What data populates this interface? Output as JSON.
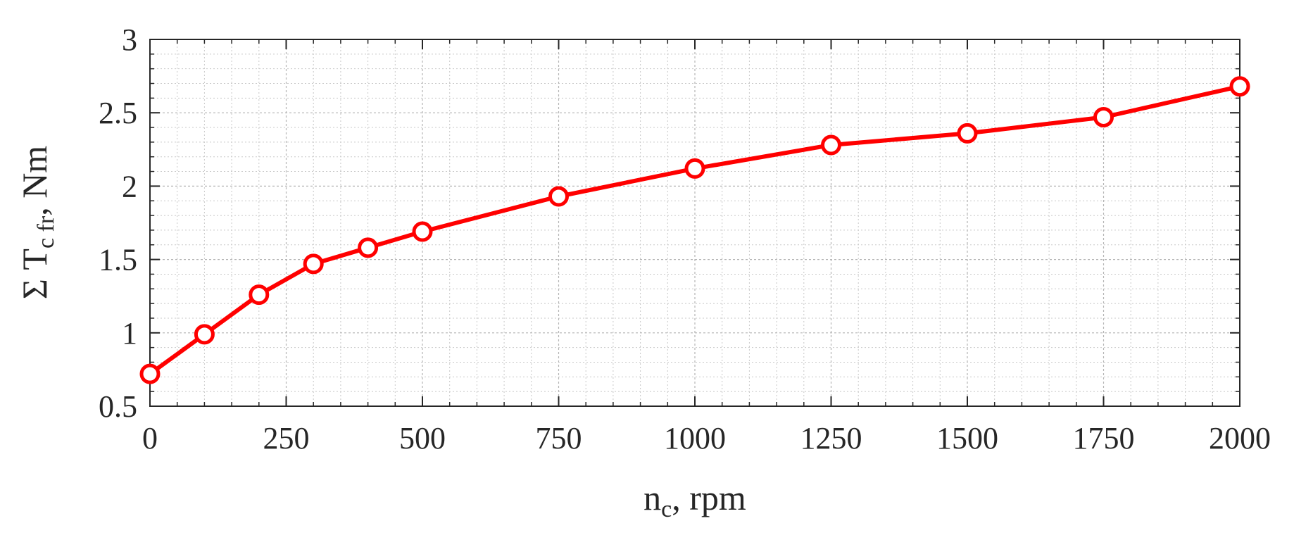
{
  "chart_data": {
    "type": "line",
    "xlabel": {
      "main": "n",
      "sub": "c",
      "rest": ", rpm"
    },
    "ylabel": {
      "main": "Σ T",
      "sub": "c fr",
      "rest": ", Nm"
    },
    "xlim": [
      0,
      2000
    ],
    "ylim": [
      0.5,
      3
    ],
    "xticks": [
      0,
      250,
      500,
      750,
      1000,
      1250,
      1500,
      1750,
      2000
    ],
    "xtick_labels": [
      "0",
      "250",
      "500",
      "750",
      "1000",
      "1250",
      "1500",
      "1750",
      "2000"
    ],
    "yticks": [
      0.5,
      1,
      1.5,
      2,
      2.5,
      3
    ],
    "ytick_labels": [
      "0.5",
      "1",
      "1.5",
      "2",
      "2.5",
      "3"
    ],
    "grid": true,
    "minor_grid": true,
    "series": [
      {
        "color": "#ff0000",
        "marker": "circle",
        "x": [
          0,
          100,
          200,
          300,
          400,
          500,
          750,
          1000,
          1250,
          1500,
          1750,
          2000
        ],
        "y": [
          0.72,
          0.99,
          1.26,
          1.47,
          1.58,
          1.69,
          1.93,
          2.12,
          2.28,
          2.36,
          2.47,
          2.68
        ]
      }
    ]
  }
}
